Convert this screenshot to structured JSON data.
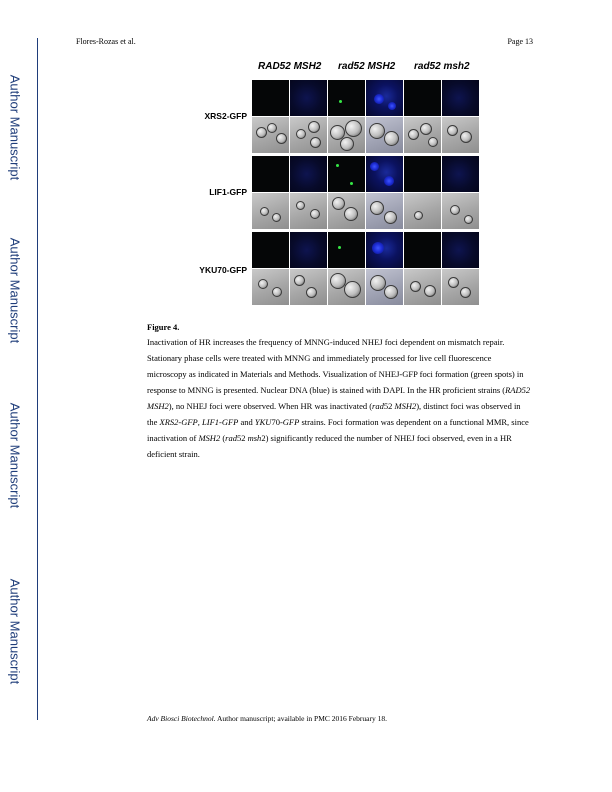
{
  "side_label": "Author Manuscript",
  "header": {
    "author": "Flores-Rozas et al.",
    "page": "Page 13"
  },
  "figure": {
    "column_headers": [
      "RAD52 MSH2",
      "rad52 MSH2",
      "rad52 msh2"
    ],
    "row_labels": [
      "XRS2-GFP",
      "LIF1-GFP",
      "YKU70-GFP"
    ]
  },
  "caption": {
    "title": "Figure 4.",
    "s1": "Inactivation of HR increases the frequency of MNNG-induced NHEJ foci dependent on mismatch repair. Stationary phase cells were treated with MNNG and immediately processed for live cell fluorescence microscopy as indicated in Materials and Methods. Visualization of NHEJ-GFP foci formation (green spots) in response to MNNG is presented. Nuclear DNA (blue) is stained with DAPI. In the HR proficient strains (",
    "i1": "RAD52 MSH2",
    "s2": "), no NHEJ foci were observed. When HR was inactivated (",
    "i2": "rad",
    "s3": "52 ",
    "i3": "MSH2",
    "s4": "), distinct foci was observed in the ",
    "i4": "XRS2-GFP",
    "s5": ", ",
    "i5": "LIF1-GFP",
    "s6": " and ",
    "i6": "YKU",
    "s7": "70",
    "i7": "-GFP",
    "s8": " strains. Foci formation was dependent on a functional MMR, since inactivation of ",
    "i8": "MSH2",
    "s9": " (",
    "i9": "rad",
    "s10": "52 ",
    "i10": "msh",
    "s11": "2) significantly reduced the number of NHEJ foci observed, even in a HR deficient strain."
  },
  "footer": {
    "journal": "Adv Biosci Biotechnol",
    "rest": ". Author manuscript; available in PMC 2016 February 18."
  }
}
